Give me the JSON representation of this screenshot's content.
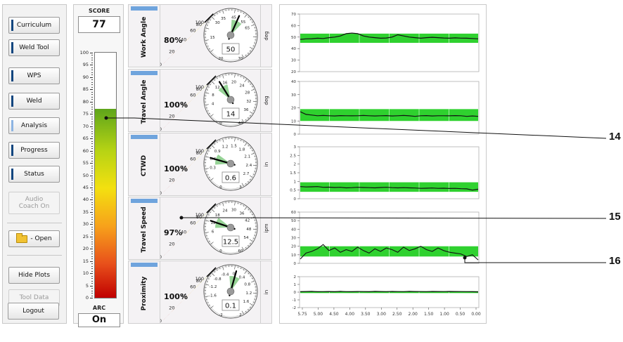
{
  "nav": {
    "items": [
      {
        "label": "Curriculum",
        "state": "normal"
      },
      {
        "label": "Weld Tool",
        "state": "normal"
      },
      {
        "label": "WPS",
        "state": "normal"
      },
      {
        "label": "Weld",
        "state": "normal"
      },
      {
        "label": "Analysis",
        "state": "active"
      },
      {
        "label": "Progress",
        "state": "normal"
      },
      {
        "label": "Status",
        "state": "normal"
      }
    ],
    "audio_coach_line1": "Audio",
    "audio_coach_line2": "Coach On",
    "open_label": "- Open",
    "hide_plots_label": "Hide Plots",
    "tool_data_label": "Tool Data",
    "logout_label": "Logout"
  },
  "score": {
    "label": "SCORE",
    "value": "77",
    "fill_fraction": 0.77,
    "ticks": [
      "100",
      "95",
      "90",
      "85",
      "80",
      "75",
      "70",
      "65",
      "60",
      "55",
      "50",
      "45",
      "40",
      "35",
      "30",
      "25",
      "20",
      "15",
      "10",
      "5",
      "0"
    ]
  },
  "arc": {
    "label": "ARC",
    "value": "On"
  },
  "gauges": [
    {
      "label": "Work Angle",
      "percent": "80%",
      "percent_value": 80,
      "readout": "50",
      "unit": "deg",
      "dial_ticks": [
        "15",
        "30",
        "35",
        "45",
        "55",
        "65",
        "70",
        "20"
      ],
      "needle_fraction": 0.55
    },
    {
      "label": "Travel Angle",
      "percent": "100%",
      "percent_value": 100,
      "readout": "14",
      "unit": "deg",
      "dial_ticks": [
        "4",
        "8",
        "12",
        "16",
        "20",
        "24",
        "28",
        "32",
        "36",
        "0",
        "40"
      ],
      "needle_fraction": 0.35
    },
    {
      "label": "CTWD",
      "percent": "100%",
      "percent_value": 100,
      "readout": "0.6",
      "unit": "in",
      "dial_ticks": [
        "0.3",
        "0.6",
        "0.9",
        "1.2",
        "1.5",
        "1.8",
        "2.1",
        "2.4",
        "2.7",
        "0",
        "3"
      ],
      "needle_fraction": 0.2
    },
    {
      "label": "Travel Speed",
      "percent": "97%",
      "percent_value": 97,
      "readout": "12.5",
      "unit": "ipm",
      "dial_ticks": [
        "6",
        "12",
        "18",
        "24",
        "30",
        "36",
        "42",
        "48",
        "54",
        "0",
        "60"
      ],
      "needle_fraction": 0.21
    },
    {
      "label": "Proximity",
      "percent": "100%",
      "percent_value": 100,
      "readout": "0.1",
      "unit": "in",
      "dial_ticks": [
        "-1.6",
        "-1.2",
        "-0.8",
        "-0.4",
        "0",
        "0.4",
        "0.8",
        "1.2",
        "1.6",
        "-2",
        "2"
      ],
      "needle_fraction": 0.52
    }
  ],
  "percent_scale": [
    "0",
    "20",
    "40",
    "60",
    "80",
    "100"
  ],
  "plots": [
    {
      "yticks": [
        "20",
        "30",
        "40",
        "50",
        "60",
        "70"
      ],
      "ylim": [
        20,
        70
      ],
      "band": [
        45,
        53
      ],
      "line": [
        48,
        48.5,
        48.6,
        49,
        48.8,
        49.5,
        50,
        51,
        53,
        53.5,
        53,
        51,
        50,
        49.5,
        49,
        49.2,
        50,
        52,
        51,
        50,
        49.5,
        49,
        49.5,
        49.8,
        49.5,
        49.2,
        49,
        49.3,
        49.1,
        49,
        48.8,
        48.5
      ]
    },
    {
      "yticks": [
        "0",
        "10",
        "20",
        "30",
        "40"
      ],
      "ylim": [
        0,
        40
      ],
      "band": [
        10,
        19
      ],
      "line": [
        17,
        15,
        14.5,
        14,
        14.2,
        14,
        13.8,
        14.1,
        14,
        13.9,
        14,
        14.2,
        14,
        13.8,
        14,
        14.1,
        13.8,
        14,
        14.2,
        13.9,
        13.5,
        14,
        14.1,
        13.8,
        14,
        14,
        13.9,
        14.1,
        14,
        13.5,
        13.8,
        13.5
      ]
    },
    {
      "yticks": [
        "0",
        "0.5",
        "1",
        "1.5",
        "2",
        "2.5",
        "3"
      ],
      "ylim": [
        0,
        3
      ],
      "band": [
        0.4,
        0.95
      ],
      "line": [
        0.7,
        0.68,
        0.69,
        0.7,
        0.66,
        0.67,
        0.65,
        0.66,
        0.63,
        0.64,
        0.66,
        0.65,
        0.64,
        0.63,
        0.65,
        0.66,
        0.64,
        0.63,
        0.64,
        0.63,
        0.62,
        0.6,
        0.61,
        0.62,
        0.6,
        0.61,
        0.59,
        0.6,
        0.58,
        0.57,
        0.5,
        0.55
      ]
    },
    {
      "yticks": [
        "0",
        "10",
        "20",
        "30",
        "40",
        "50",
        "60"
      ],
      "ylim": [
        0,
        60
      ],
      "band": [
        8,
        20
      ],
      "line": [
        5,
        12,
        14,
        17,
        22,
        15,
        18,
        13,
        16,
        14,
        19,
        15,
        12,
        17,
        14,
        18,
        16,
        13,
        19,
        15,
        17,
        20,
        16,
        14,
        18,
        15,
        13,
        12,
        11,
        8,
        10,
        4
      ]
    },
    {
      "yticks": [
        "-2",
        "-1",
        "0",
        "1",
        "2"
      ],
      "ylim": [
        -2,
        2
      ],
      "band": [
        -0.12,
        0.12
      ],
      "line": [
        0.05,
        0.08,
        0.1,
        0.05,
        0.06,
        0.08,
        0.05,
        0.1,
        0.06,
        0.05,
        0.08,
        0.07,
        0.05,
        0.1,
        0.08,
        0.06,
        0.09,
        0.07,
        0.06,
        0.1,
        0.08,
        0.07,
        0.06,
        0.09,
        0.08,
        0.07,
        0.09,
        0.08,
        0.07,
        0.06,
        0.05,
        0.04
      ]
    }
  ],
  "xticks": [
    "5.75",
    "5.00",
    "4.50",
    "4.00",
    "3.50",
    "3.00",
    "2.50",
    "2.00",
    "1.50",
    "1.00",
    "0.50",
    "0.00"
  ],
  "callouts": [
    "14",
    "15",
    "16"
  ],
  "colors": {
    "band": "#2fd12f",
    "tab": "#6fa4dd",
    "nav_mark": "#12467f",
    "nav_mark_active": "#8db4e2"
  }
}
